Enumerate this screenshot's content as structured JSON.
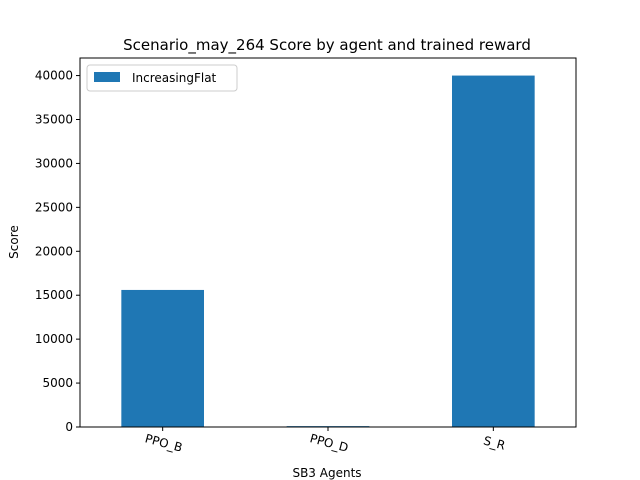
{
  "chart_data": {
    "type": "bar",
    "title": "Scenario_may_264 Score by agent and trained reward",
    "xlabel": "SB3 Agents",
    "ylabel": "Score",
    "categories": [
      "PPO_B",
      "PPO_D",
      "S_R"
    ],
    "series": [
      {
        "name": "IncreasingFlat",
        "values": [
          15600,
          100,
          40000
        ],
        "color": "#1f77b4"
      }
    ],
    "ylim": [
      0,
      42000
    ],
    "yticks": [
      0,
      5000,
      10000,
      15000,
      20000,
      25000,
      30000,
      35000,
      40000
    ],
    "grid": false,
    "legend_position": "top-left"
  }
}
